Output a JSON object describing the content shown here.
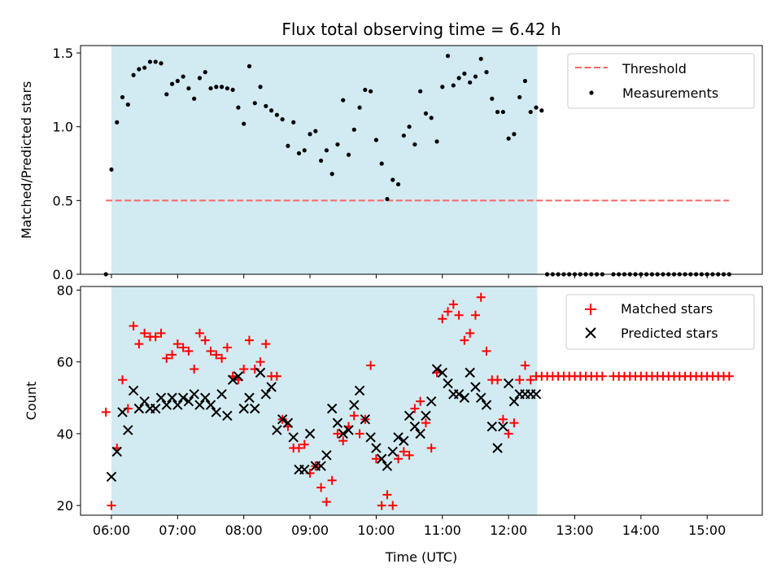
{
  "figure": {
    "title": "Flux total observing time = 6.42 h",
    "xlabel": "Time (UTC)",
    "xticks": [
      "06:00",
      "07:00",
      "08:00",
      "09:00",
      "10:00",
      "11:00",
      "12:00",
      "13:00",
      "14:00",
      "15:00"
    ]
  },
  "colors": {
    "shade": "#add8e6",
    "threshold": "#ff6666",
    "measurements": "#000000",
    "matched": "#ff0000",
    "predicted": "#000000"
  },
  "chart_data": [
    {
      "type": "scatter",
      "ylabel": "Matched/Predicted stars",
      "xlim": [
        "05:32",
        "15:50"
      ],
      "ylim": [
        0,
        1.55
      ],
      "yticks": [
        "0.0",
        "0.5",
        "1.0",
        "1.5"
      ],
      "shaded_interval": [
        "06:00",
        "12:26"
      ],
      "legend": {
        "placement": "top-right",
        "entries": [
          "Threshold",
          "Measurements"
        ]
      },
      "threshold": {
        "name": "Threshold",
        "y": 0.5,
        "x_from": "05:55",
        "x_to": "15:20",
        "style": "dashed"
      },
      "series": [
        {
          "name": "Measurements",
          "marker": "dot",
          "x": [
            "05:55",
            "06:00",
            "06:05",
            "06:10",
            "06:15",
            "06:20",
            "06:25",
            "06:30",
            "06:35",
            "06:40",
            "06:45",
            "06:50",
            "06:55",
            "07:00",
            "07:05",
            "07:10",
            "07:15",
            "07:20",
            "07:25",
            "07:30",
            "07:35",
            "07:40",
            "07:45",
            "07:50",
            "07:55",
            "08:00",
            "08:05",
            "08:10",
            "08:15",
            "08:20",
            "08:25",
            "08:30",
            "08:35",
            "08:40",
            "08:45",
            "08:50",
            "08:55",
            "09:00",
            "09:05",
            "09:10",
            "09:15",
            "09:20",
            "09:25",
            "09:30",
            "09:35",
            "09:40",
            "09:45",
            "09:50",
            "09:55",
            "10:00",
            "10:05",
            "10:10",
            "10:15",
            "10:20",
            "10:25",
            "10:30",
            "10:35",
            "10:40",
            "10:45",
            "10:50",
            "10:55",
            "11:00",
            "11:05",
            "11:10",
            "11:15",
            "11:20",
            "11:25",
            "11:30",
            "11:35",
            "11:40",
            "11:45",
            "11:50",
            "11:55",
            "12:00",
            "12:05",
            "12:10",
            "12:15",
            "12:20",
            "12:25",
            "12:30",
            "12:35",
            "12:40",
            "12:45",
            "12:50",
            "12:55",
            "13:00",
            "13:05",
            "13:10",
            "13:15",
            "13:20",
            "13:25",
            "13:35",
            "13:40",
            "13:45",
            "13:50",
            "13:55",
            "14:00",
            "14:05",
            "14:10",
            "14:15",
            "14:20",
            "14:25",
            "14:30",
            "14:35",
            "14:40",
            "14:45",
            "14:50",
            "14:55",
            "15:00",
            "15:05",
            "15:10",
            "15:15",
            "15:20"
          ],
          "y": [
            0.0,
            0.71,
            1.03,
            1.2,
            1.15,
            1.35,
            1.39,
            1.4,
            1.44,
            1.44,
            1.43,
            1.22,
            1.29,
            1.31,
            1.34,
            1.26,
            1.19,
            1.33,
            1.37,
            1.26,
            1.27,
            1.27,
            1.26,
            1.25,
            1.13,
            1.02,
            1.41,
            1.16,
            1.27,
            1.14,
            1.11,
            1.08,
            1.05,
            0.87,
            1.03,
            0.82,
            0.84,
            0.95,
            0.97,
            0.77,
            0.84,
            0.68,
            0.88,
            1.18,
            0.81,
            0.98,
            1.13,
            1.25,
            1.24,
            0.91,
            0.75,
            0.51,
            0.64,
            0.61,
            0.94,
            1.0,
            0.88,
            1.24,
            1.09,
            1.06,
            0.9,
            1.27,
            1.48,
            1.28,
            1.33,
            1.36,
            1.3,
            1.34,
            1.46,
            1.37,
            1.19,
            1.1,
            1.1,
            0.92,
            0.95,
            1.2,
            1.31,
            1.1,
            1.13,
            1.11,
            0.0,
            0.0,
            0.0,
            0.0,
            0.0,
            0.0,
            0.0,
            0.0,
            0.0,
            0.0,
            0.0,
            0.0,
            0.0,
            0.0,
            0.0,
            0.0,
            0.0,
            0.0,
            0.0,
            0.0,
            0.0,
            0.0,
            0.0,
            0.0,
            0.0,
            0.0,
            0.0,
            0.0,
            0.0,
            0.0,
            0.0,
            0.0,
            0.0
          ]
        }
      ]
    },
    {
      "type": "scatter",
      "ylabel": "Count",
      "xlim": [
        "05:32",
        "15:50"
      ],
      "ylim": [
        17.3,
        81
      ],
      "yticks": [
        "20",
        "40",
        "60",
        "80"
      ],
      "shaded_interval": [
        "06:00",
        "12:26"
      ],
      "legend": {
        "placement": "top-right",
        "entries": [
          "Matched stars",
          "Predicted stars"
        ]
      },
      "series": [
        {
          "name": "Matched stars",
          "marker": "plus",
          "x": [
            "05:55",
            "06:00",
            "06:05",
            "06:10",
            "06:15",
            "06:20",
            "06:25",
            "06:30",
            "06:35",
            "06:40",
            "06:45",
            "06:50",
            "06:55",
            "07:00",
            "07:05",
            "07:10",
            "07:15",
            "07:20",
            "07:25",
            "07:30",
            "07:35",
            "07:40",
            "07:45",
            "07:50",
            "07:55",
            "08:00",
            "08:05",
            "08:10",
            "08:15",
            "08:20",
            "08:25",
            "08:30",
            "08:35",
            "08:40",
            "08:45",
            "08:50",
            "08:55",
            "09:00",
            "09:05",
            "09:10",
            "09:15",
            "09:20",
            "09:25",
            "09:30",
            "09:35",
            "09:40",
            "09:45",
            "09:50",
            "09:55",
            "10:00",
            "10:05",
            "10:10",
            "10:15",
            "10:20",
            "10:25",
            "10:30",
            "10:35",
            "10:40",
            "10:45",
            "10:50",
            "10:55",
            "11:00",
            "11:05",
            "11:10",
            "11:15",
            "11:20",
            "11:25",
            "11:30",
            "11:35",
            "11:40",
            "11:45",
            "11:50",
            "11:55",
            "12:00",
            "12:05",
            "12:10",
            "12:15",
            "12:20",
            "12:25",
            "12:30",
            "12:35",
            "12:40",
            "12:45",
            "12:50",
            "12:55",
            "13:00",
            "13:05",
            "13:10",
            "13:15",
            "13:20",
            "13:25",
            "13:35",
            "13:40",
            "13:45",
            "13:50",
            "13:55",
            "14:00",
            "14:05",
            "14:10",
            "14:15",
            "14:20",
            "14:25",
            "14:30",
            "14:35",
            "14:40",
            "14:45",
            "14:50",
            "14:55",
            "15:00",
            "15:05",
            "15:10",
            "15:15",
            "15:20"
          ],
          "y": [
            46,
            20,
            36,
            55,
            47,
            70,
            65,
            68,
            67,
            67,
            68,
            61,
            62,
            65,
            64,
            63,
            58,
            68,
            66,
            63,
            62,
            61,
            64,
            56,
            55,
            58,
            66,
            58,
            60,
            65,
            56,
            56,
            44,
            42,
            36,
            36,
            37,
            29,
            31,
            25,
            21,
            27,
            40,
            38,
            42,
            45,
            40,
            44,
            59,
            33,
            20,
            23,
            20,
            33,
            35,
            34,
            47,
            49,
            43,
            36,
            57,
            72,
            74,
            76,
            73,
            66,
            68,
            73,
            78,
            63,
            55,
            55,
            44,
            40,
            43,
            55,
            59,
            55,
            56,
            56,
            56,
            56,
            56,
            56,
            56,
            56,
            56,
            56,
            56,
            56,
            56,
            56,
            56,
            56,
            56,
            56,
            56,
            56,
            56,
            56,
            56,
            56,
            56,
            56,
            56,
            56,
            56,
            56,
            56,
            56,
            56,
            56,
            56
          ]
        },
        {
          "name": "Predicted stars",
          "marker": "x",
          "x": [
            "06:00",
            "06:05",
            "06:10",
            "06:15",
            "06:20",
            "06:25",
            "06:30",
            "06:35",
            "06:40",
            "06:45",
            "06:50",
            "06:55",
            "07:00",
            "07:05",
            "07:10",
            "07:15",
            "07:20",
            "07:25",
            "07:30",
            "07:35",
            "07:40",
            "07:45",
            "07:50",
            "07:55",
            "08:00",
            "08:05",
            "08:10",
            "08:15",
            "08:20",
            "08:25",
            "08:30",
            "08:35",
            "08:40",
            "08:45",
            "08:50",
            "08:55",
            "09:00",
            "09:05",
            "09:10",
            "09:15",
            "09:20",
            "09:25",
            "09:30",
            "09:35",
            "09:40",
            "09:45",
            "09:50",
            "09:55",
            "10:00",
            "10:05",
            "10:10",
            "10:15",
            "10:20",
            "10:25",
            "10:30",
            "10:35",
            "10:40",
            "10:45",
            "10:50",
            "10:55",
            "11:00",
            "11:05",
            "11:10",
            "11:15",
            "11:20",
            "11:25",
            "11:30",
            "11:35",
            "11:40",
            "11:45",
            "11:50",
            "11:55",
            "12:00",
            "12:05",
            "12:10",
            "12:15",
            "12:20",
            "12:25"
          ],
          "y": [
            28,
            35,
            46,
            41,
            52,
            47,
            49,
            47,
            47,
            50,
            48,
            50,
            48,
            50,
            49,
            51,
            48,
            50,
            48,
            46,
            51,
            45,
            55,
            56,
            47,
            50,
            47,
            57,
            51,
            53,
            41,
            44,
            43,
            39,
            30,
            30,
            40,
            31,
            31,
            34,
            47,
            43,
            40,
            41,
            48,
            52,
            44,
            39,
            36,
            33,
            31,
            35,
            39,
            38,
            45,
            42,
            40,
            45,
            49,
            58,
            57,
            54,
            51,
            51,
            50,
            57,
            53,
            50,
            48,
            42,
            36,
            42,
            54,
            49,
            51,
            51,
            51,
            51
          ]
        }
      ]
    }
  ]
}
